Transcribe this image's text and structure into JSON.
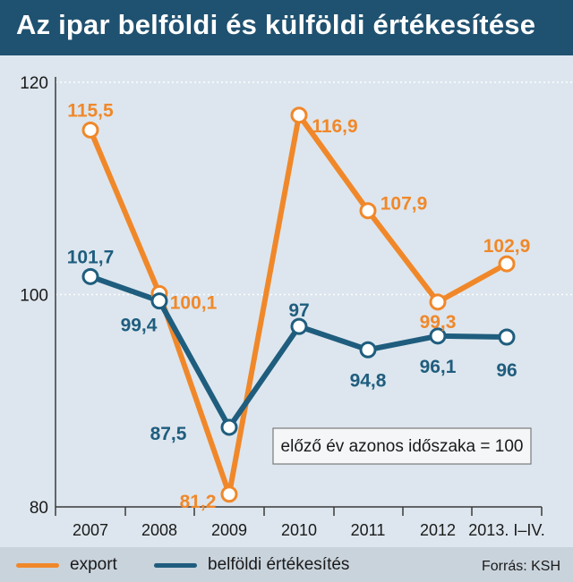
{
  "chart_data": {
    "type": "line",
    "title": "Az ipar belföldi és külföldi értékesítése",
    "categories": [
      "2007",
      "2008",
      "2009",
      "2010",
      "2011",
      "2012",
      "2013. I–IV."
    ],
    "series": [
      {
        "name": "export",
        "color": "#f0882a",
        "values": [
          115.5,
          100.1,
          81.2,
          116.9,
          107.9,
          99.3,
          102.9
        ],
        "labels": [
          "115,5",
          "100,1",
          "81,2",
          "116,9",
          "107,9",
          "99,3",
          "102,9"
        ]
      },
      {
        "name": "belföldi értékesítés",
        "color": "#1f5d7e",
        "values": [
          101.7,
          99.4,
          87.5,
          97,
          94.8,
          96.1,
          96
        ],
        "labels": [
          "101,7",
          "99,4",
          "87,5",
          "97",
          "94,8",
          "96,1",
          "96"
        ]
      }
    ],
    "ylim": [
      80,
      120
    ],
    "yticks": [
      "80",
      "100",
      "120"
    ],
    "grid": true,
    "annotation": "előző év azonos időszaka = 100",
    "source": "Forrás: KSH"
  }
}
